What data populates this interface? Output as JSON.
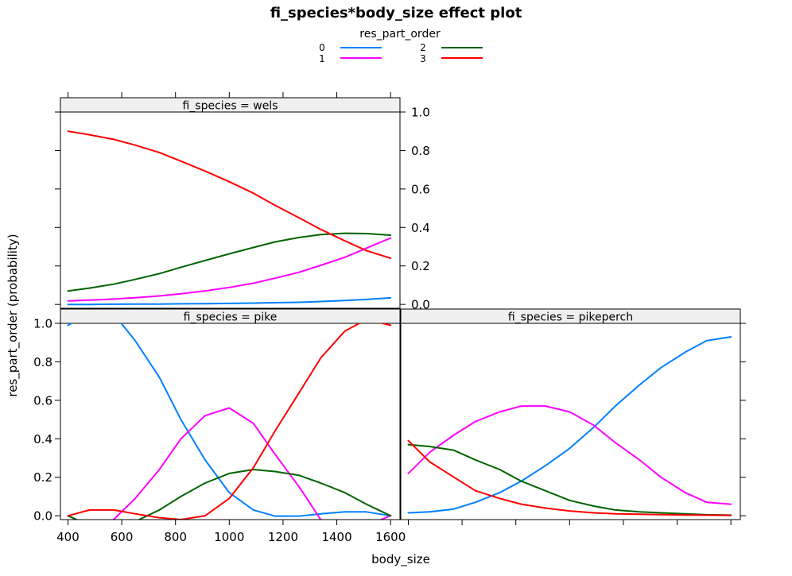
{
  "chart_data": {
    "type": "line",
    "title": "fi_species*body_size effect plot",
    "xlabel": "body_size",
    "ylabel": "res_part_order (probability)",
    "legend": {
      "title": "res_part_order",
      "placement": "top-center",
      "entries": [
        {
          "name": "0",
          "color": "#0080ff"
        },
        {
          "name": "1",
          "color": "#ff00ff"
        },
        {
          "name": "2",
          "color": "#006400"
        },
        {
          "name": "3",
          "color": "#ff0000"
        }
      ]
    },
    "xlim": [
      372,
      1635
    ],
    "ylim": [
      -0.02,
      1.0
    ],
    "x_ticks": [
      400,
      600,
      800,
      1000,
      1200,
      1400,
      1600
    ],
    "x_tick_labels": [
      "400",
      "600",
      "800",
      "1000",
      "1200",
      "1400",
      "1600"
    ],
    "y_ticks": [
      0.0,
      0.2,
      0.4,
      0.6,
      0.8,
      1.0
    ],
    "y_tick_labels": [
      "0.0",
      "0.2",
      "0.4",
      "0.6",
      "0.8",
      "1.0"
    ],
    "panels": [
      {
        "strip": "fi_species = wels",
        "x": [
          400,
          480,
          570,
          650,
          740,
          820,
          910,
          1000,
          1090,
          1170,
          1260,
          1340,
          1430,
          1510,
          1600
        ],
        "series": [
          {
            "name": "0",
            "values": [
              0.0,
              0.0,
              0.001,
              0.002,
              0.002,
              0.003,
              0.004,
              0.005,
              0.007,
              0.009,
              0.011,
              0.015,
              0.02,
              0.026,
              0.034
            ]
          },
          {
            "name": "1",
            "values": [
              0.018,
              0.022,
              0.028,
              0.035,
              0.044,
              0.055,
              0.07,
              0.088,
              0.11,
              0.136,
              0.167,
              0.203,
              0.245,
              0.292,
              0.345
            ]
          },
          {
            "name": "2",
            "values": [
              0.07,
              0.085,
              0.105,
              0.13,
              0.16,
              0.193,
              0.228,
              0.263,
              0.296,
              0.325,
              0.348,
              0.363,
              0.37,
              0.368,
              0.36
            ]
          },
          {
            "name": "3",
            "values": [
              0.9,
              0.882,
              0.858,
              0.828,
              0.79,
              0.745,
              0.693,
              0.638,
              0.578,
              0.515,
              0.45,
              0.39,
              0.33,
              0.28,
              0.24
            ]
          }
        ]
      },
      {
        "strip": "fi_species = pike",
        "x": [
          400,
          480,
          570,
          650,
          740,
          820,
          910,
          1000,
          1090,
          1170,
          1260,
          1340,
          1430,
          1510,
          1600
        ],
        "series": [
          {
            "name": "0",
            "values": [
              0.99,
              1.05,
              1.05,
              0.91,
              0.72,
              0.5,
              0.29,
              0.12,
              0.03,
              -0.002,
              -0.002,
              0.01,
              0.02,
              0.02,
              0.0
            ]
          },
          {
            "name": "1",
            "values": [
              0.0,
              -0.05,
              -0.02,
              0.09,
              0.24,
              0.4,
              0.52,
              0.56,
              0.48,
              0.32,
              0.15,
              -0.02,
              -0.05,
              -0.05,
              0.0
            ]
          },
          {
            "name": "2",
            "values": [
              0.0,
              -0.05,
              -0.05,
              -0.03,
              0.03,
              0.1,
              0.17,
              0.22,
              0.24,
              0.23,
              0.21,
              0.17,
              0.12,
              0.06,
              0.0
            ]
          },
          {
            "name": "3",
            "values": [
              0.0,
              0.03,
              0.03,
              0.01,
              -0.01,
              -0.02,
              0.0,
              0.09,
              0.25,
              0.44,
              0.64,
              0.82,
              0.96,
              1.02,
              0.99
            ]
          }
        ]
      },
      {
        "strip": "fi_species = pikeperch",
        "x": [
          400,
          480,
          570,
          650,
          740,
          820,
          910,
          1000,
          1090,
          1170,
          1260,
          1340,
          1430,
          1510,
          1600
        ],
        "series": [
          {
            "name": "0",
            "values": [
              0.015,
              0.02,
              0.035,
              0.07,
              0.12,
              0.18,
              0.26,
              0.35,
              0.46,
              0.57,
              0.68,
              0.77,
              0.85,
              0.91,
              0.93
            ]
          },
          {
            "name": "1",
            "values": [
              0.22,
              0.33,
              0.42,
              0.49,
              0.54,
              0.57,
              0.57,
              0.54,
              0.47,
              0.38,
              0.29,
              0.2,
              0.12,
              0.07,
              0.06
            ]
          },
          {
            "name": "2",
            "values": [
              0.37,
              0.36,
              0.34,
              0.29,
              0.24,
              0.18,
              0.13,
              0.08,
              0.05,
              0.03,
              0.02,
              0.015,
              0.01,
              0.005,
              0.003
            ]
          },
          {
            "name": "3",
            "values": [
              0.39,
              0.28,
              0.2,
              0.13,
              0.09,
              0.06,
              0.04,
              0.025,
              0.015,
              0.01,
              0.008,
              0.006,
              0.004,
              0.003,
              0.002
            ]
          }
        ]
      }
    ]
  }
}
